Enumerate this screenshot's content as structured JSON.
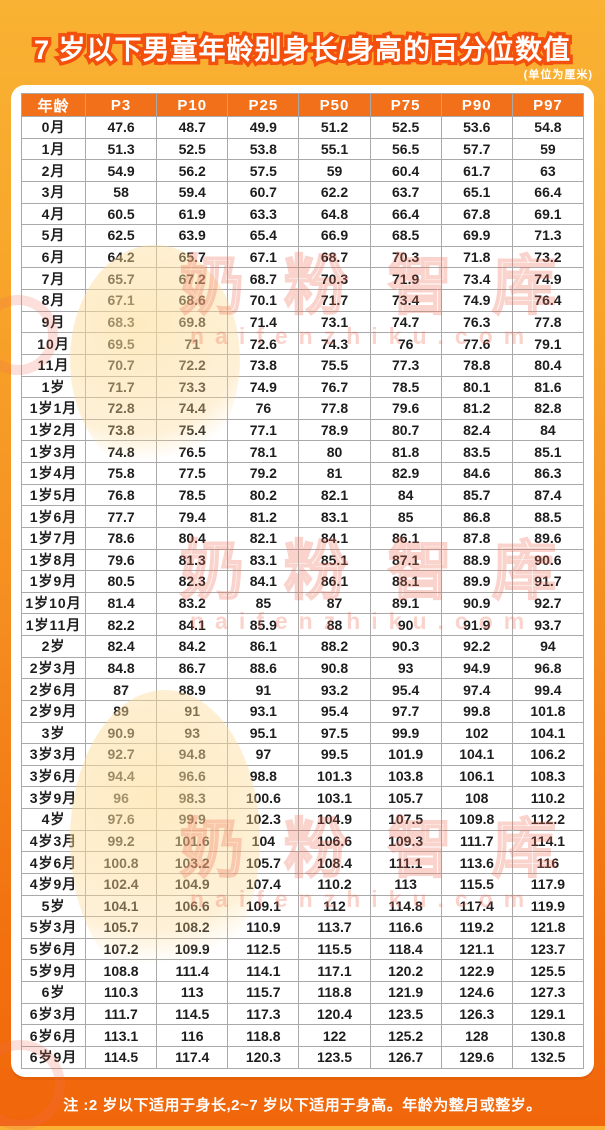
{
  "page": {
    "title": "7 岁以下男童年龄别身长/身高的百分位数值",
    "unit_note": "(单位为厘米)",
    "footer_note": "注 :2 岁以下适用于身长,2~7 岁以下适用于身高。年龄为整月或整岁。"
  },
  "watermark": {
    "brand_text": "奶粉智库",
    "url_text": "naifenzhiku.com"
  },
  "colors": {
    "background_top": "#F9B233",
    "background_bottom": "#F1660B",
    "header_orange": "#F3701B",
    "title_stroke_orange": "#F3500E",
    "table_border_gray": "#A9A9A9",
    "cell_text": "#1D1D1D",
    "card_white": "#FFFFFF"
  },
  "table": {
    "columns": [
      "年龄",
      "P3",
      "P10",
      "P25",
      "P50",
      "P75",
      "P90",
      "P97"
    ],
    "rows": [
      {
        "age": "0月",
        "values": [
          "47.6",
          "48.7",
          "49.9",
          "51.2",
          "52.5",
          "53.6",
          "54.8"
        ]
      },
      {
        "age": "1月",
        "values": [
          "51.3",
          "52.5",
          "53.8",
          "55.1",
          "56.5",
          "57.7",
          "59"
        ]
      },
      {
        "age": "2月",
        "values": [
          "54.9",
          "56.2",
          "57.5",
          "59",
          "60.4",
          "61.7",
          "63"
        ]
      },
      {
        "age": "3月",
        "values": [
          "58",
          "59.4",
          "60.7",
          "62.2",
          "63.7",
          "65.1",
          "66.4"
        ]
      },
      {
        "age": "4月",
        "values": [
          "60.5",
          "61.9",
          "63.3",
          "64.8",
          "66.4",
          "67.8",
          "69.1"
        ]
      },
      {
        "age": "5月",
        "values": [
          "62.5",
          "63.9",
          "65.4",
          "66.9",
          "68.5",
          "69.9",
          "71.3"
        ]
      },
      {
        "age": "6月",
        "values": [
          "64.2",
          "65.7",
          "67.1",
          "68.7",
          "70.3",
          "71.8",
          "73.2"
        ]
      },
      {
        "age": "7月",
        "values": [
          "65.7",
          "67.2",
          "68.7",
          "70.3",
          "71.9",
          "73.4",
          "74.9"
        ]
      },
      {
        "age": "8月",
        "values": [
          "67.1",
          "68.6",
          "70.1",
          "71.7",
          "73.4",
          "74.9",
          "76.4"
        ]
      },
      {
        "age": "9月",
        "values": [
          "68.3",
          "69.8",
          "71.4",
          "73.1",
          "74.7",
          "76.3",
          "77.8"
        ]
      },
      {
        "age": "10月",
        "values": [
          "69.5",
          "71",
          "72.6",
          "74.3",
          "76",
          "77.6",
          "79.1"
        ]
      },
      {
        "age": "11月",
        "values": [
          "70.7",
          "72.2",
          "73.8",
          "75.5",
          "77.3",
          "78.8",
          "80.4"
        ]
      },
      {
        "age": "1岁",
        "values": [
          "71.7",
          "73.3",
          "74.9",
          "76.7",
          "78.5",
          "80.1",
          "81.6"
        ]
      },
      {
        "age": "1岁1月",
        "values": [
          "72.8",
          "74.4",
          "76",
          "77.8",
          "79.6",
          "81.2",
          "82.8"
        ]
      },
      {
        "age": "1岁2月",
        "values": [
          "73.8",
          "75.4",
          "77.1",
          "78.9",
          "80.7",
          "82.4",
          "84"
        ]
      },
      {
        "age": "1岁3月",
        "values": [
          "74.8",
          "76.5",
          "78.1",
          "80",
          "81.8",
          "83.5",
          "85.1"
        ]
      },
      {
        "age": "1岁4月",
        "values": [
          "75.8",
          "77.5",
          "79.2",
          "81",
          "82.9",
          "84.6",
          "86.3"
        ]
      },
      {
        "age": "1岁5月",
        "values": [
          "76.8",
          "78.5",
          "80.2",
          "82.1",
          "84",
          "85.7",
          "87.4"
        ]
      },
      {
        "age": "1岁6月",
        "values": [
          "77.7",
          "79.4",
          "81.2",
          "83.1",
          "85",
          "86.8",
          "88.5"
        ]
      },
      {
        "age": "1岁7月",
        "values": [
          "78.6",
          "80.4",
          "82.1",
          "84.1",
          "86.1",
          "87.8",
          "89.6"
        ]
      },
      {
        "age": "1岁8月",
        "values": [
          "79.6",
          "81.3",
          "83.1",
          "85.1",
          "87.1",
          "88.9",
          "90.6"
        ]
      },
      {
        "age": "1岁9月",
        "values": [
          "80.5",
          "82.3",
          "84.1",
          "86.1",
          "88.1",
          "89.9",
          "91.7"
        ]
      },
      {
        "age": "1岁10月",
        "values": [
          "81.4",
          "83.2",
          "85",
          "87",
          "89.1",
          "90.9",
          "92.7"
        ]
      },
      {
        "age": "1岁11月",
        "values": [
          "82.2",
          "84.1",
          "85.9",
          "88",
          "90",
          "91.9",
          "93.7"
        ]
      },
      {
        "age": "2岁",
        "values": [
          "82.4",
          "84.2",
          "86.1",
          "88.2",
          "90.3",
          "92.2",
          "94"
        ]
      },
      {
        "age": "2岁3月",
        "values": [
          "84.8",
          "86.7",
          "88.6",
          "90.8",
          "93",
          "94.9",
          "96.8"
        ]
      },
      {
        "age": "2岁6月",
        "values": [
          "87",
          "88.9",
          "91",
          "93.2",
          "95.4",
          "97.4",
          "99.4"
        ]
      },
      {
        "age": "2岁9月",
        "values": [
          "89",
          "91",
          "93.1",
          "95.4",
          "97.7",
          "99.8",
          "101.8"
        ]
      },
      {
        "age": "3岁",
        "values": [
          "90.9",
          "93",
          "95.1",
          "97.5",
          "99.9",
          "102",
          "104.1"
        ]
      },
      {
        "age": "3岁3月",
        "values": [
          "92.7",
          "94.8",
          "97",
          "99.5",
          "101.9",
          "104.1",
          "106.2"
        ]
      },
      {
        "age": "3岁6月",
        "values": [
          "94.4",
          "96.6",
          "98.8",
          "101.3",
          "103.8",
          "106.1",
          "108.3"
        ]
      },
      {
        "age": "3岁9月",
        "values": [
          "96",
          "98.3",
          "100.6",
          "103.1",
          "105.7",
          "108",
          "110.2"
        ]
      },
      {
        "age": "4岁",
        "values": [
          "97.6",
          "99.9",
          "102.3",
          "104.9",
          "107.5",
          "109.8",
          "112.2"
        ]
      },
      {
        "age": "4岁3月",
        "values": [
          "99.2",
          "101.6",
          "104",
          "106.6",
          "109.3",
          "111.7",
          "114.1"
        ]
      },
      {
        "age": "4岁6月",
        "values": [
          "100.8",
          "103.2",
          "105.7",
          "108.4",
          "111.1",
          "113.6",
          "116"
        ]
      },
      {
        "age": "4岁9月",
        "values": [
          "102.4",
          "104.9",
          "107.4",
          "110.2",
          "113",
          "115.5",
          "117.9"
        ]
      },
      {
        "age": "5岁",
        "values": [
          "104.1",
          "106.6",
          "109.1",
          "112",
          "114.8",
          "117.4",
          "119.9"
        ]
      },
      {
        "age": "5岁3月",
        "values": [
          "105.7",
          "108.2",
          "110.9",
          "113.7",
          "116.6",
          "119.2",
          "121.8"
        ]
      },
      {
        "age": "5岁6月",
        "values": [
          "107.2",
          "109.9",
          "112.5",
          "115.5",
          "118.4",
          "121.1",
          "123.7"
        ]
      },
      {
        "age": "5岁9月",
        "values": [
          "108.8",
          "111.4",
          "114.1",
          "117.1",
          "120.2",
          "122.9",
          "125.5"
        ]
      },
      {
        "age": "6岁",
        "values": [
          "110.3",
          "113",
          "115.7",
          "118.8",
          "121.9",
          "124.6",
          "127.3"
        ]
      },
      {
        "age": "6岁3月",
        "values": [
          "111.7",
          "114.5",
          "117.3",
          "120.4",
          "123.5",
          "126.3",
          "129.1"
        ]
      },
      {
        "age": "6岁6月",
        "values": [
          "113.1",
          "116",
          "118.8",
          "122",
          "125.2",
          "128",
          "130.8"
        ]
      },
      {
        "age": "6岁9月",
        "values": [
          "114.5",
          "117.4",
          "120.3",
          "123.5",
          "126.7",
          "129.6",
          "132.5"
        ]
      }
    ]
  }
}
